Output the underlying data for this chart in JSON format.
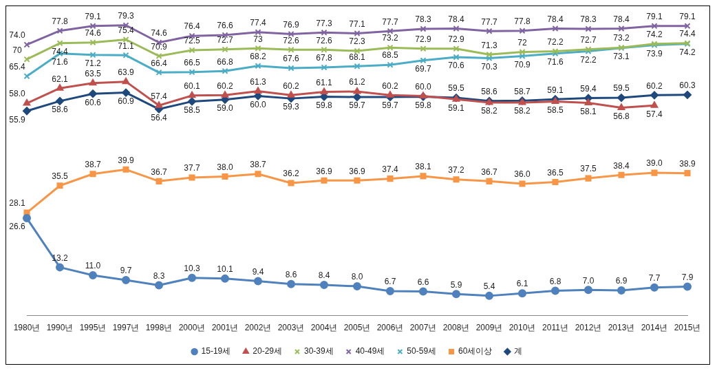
{
  "chart_data": {
    "type": "line",
    "categories": [
      "1980년",
      "1990년",
      "1995년",
      "1997년",
      "1998년",
      "2000년",
      "2001년",
      "2002년",
      "2003년",
      "2004년",
      "2005년",
      "2006년",
      "2007년",
      "2008년",
      "2009년",
      "2010년",
      "2011년",
      "2012년",
      "2013년",
      "2014년",
      "2015년"
    ],
    "series": [
      {
        "name": "15-19세",
        "color": "#4f81bd",
        "marker": "circle",
        "values": [
          26.6,
          13.2,
          11.0,
          9.7,
          8.3,
          10.3,
          10.1,
          9.4,
          8.6,
          8.4,
          8.0,
          6.7,
          6.6,
          5.9,
          5.4,
          6.1,
          6.8,
          7.0,
          6.9,
          7.7,
          7.9
        ],
        "value_labels": [
          "26.6",
          "13.2",
          "11.0",
          "9.7",
          "8.3",
          "10.3",
          "10.1",
          "9.4",
          "8.6",
          "8.4",
          "8.0",
          "6.7",
          "6.6",
          "5.9",
          "5.4",
          "6.1",
          "6.8",
          "7.0",
          "6.9",
          "7.7",
          "7.9"
        ]
      },
      {
        "name": "20-29세",
        "color": "#c0504d",
        "marker": "triangle",
        "values": [
          58.0,
          62.1,
          63.5,
          63.9,
          57.4,
          60.1,
          60.2,
          61.3,
          60.2,
          61.1,
          61.2,
          60.2,
          60.0,
          59.1,
          58.2,
          58.2,
          58.5,
          58.1,
          56.8,
          57.4,
          null
        ],
        "value_labels": [
          "58.0",
          "62.1",
          "63.5",
          "63.9",
          "57.4",
          "60.1",
          "60.2",
          "61.3",
          "60.2",
          "61.1",
          "61.2",
          "60.2",
          "60.0",
          "59.1",
          "58.2",
          "58.2",
          "58.5",
          "58.1",
          "56.8",
          "57.4",
          null
        ]
      },
      {
        "name": "30-39세",
        "color": "#9bbb59",
        "marker": "cross",
        "values": [
          70,
          74.4,
          74.6,
          75.4,
          70.9,
          72.5,
          72.7,
          73,
          72.6,
          72.6,
          72.3,
          73.2,
          72.9,
          72.9,
          71.3,
          72,
          72.2,
          72.7,
          73.2,
          74.2,
          74.4
        ],
        "value_labels": [
          "70",
          "74.4",
          "74.6",
          "75.4",
          "70.9",
          "72.5",
          "72.7",
          "73",
          "72.6",
          "72.6",
          "72.3",
          "73.2",
          "72.9",
          "72.9",
          "71.3",
          "72",
          "72.2",
          "72.7",
          "73.2",
          "74.2",
          "74.4"
        ]
      },
      {
        "name": "40-49세",
        "color": "#8064a2",
        "marker": "cross",
        "values": [
          74.0,
          77.8,
          79.1,
          79.3,
          74.6,
          76.4,
          76.6,
          77.4,
          76.9,
          77.3,
          77.1,
          77.7,
          78.3,
          78.4,
          77.7,
          77.8,
          78.4,
          78.3,
          78.4,
          79.1,
          79.1
        ],
        "value_labels": [
          "74.0",
          "77.8",
          "79.1",
          "79.3",
          "74.6",
          "76.4",
          "76.6",
          "77.4",
          "76.9",
          "77.3",
          "77.1",
          "77.7",
          "78.3",
          "78.4",
          "77.7",
          "77.8",
          "78.4",
          "78.3",
          "78.4",
          "79.1",
          "79.1"
        ]
      },
      {
        "name": "50-59세",
        "color": "#4bacc6",
        "marker": "cross",
        "values": [
          65.4,
          71.6,
          71.2,
          71.1,
          66.4,
          66.5,
          66.8,
          68.2,
          67.6,
          67.8,
          68.1,
          68.5,
          69.7,
          70.6,
          70.3,
          70.9,
          71.6,
          72.2,
          73.1,
          73.9,
          74.2
        ],
        "value_labels": [
          "65.4",
          "71.6",
          "71.2",
          "71.1",
          "66.4",
          "66.5",
          "66.8",
          "68.2",
          "67.6",
          "67.8",
          "68.1",
          "68.5",
          "69.7",
          "70.6",
          "70.3",
          "70.9",
          "71.6",
          "72.2",
          "73.1",
          "73.9",
          "74.2"
        ]
      },
      {
        "name": "60세이상",
        "color": "#f79646",
        "marker": "square",
        "values": [
          28.1,
          35.5,
          38.7,
          39.9,
          36.7,
          37.7,
          38.0,
          38.7,
          36.2,
          36.9,
          36.9,
          37.4,
          38.1,
          37.2,
          36.7,
          36.0,
          36.5,
          37.5,
          38.4,
          39.0,
          38.9
        ],
        "value_labels": [
          "28.1",
          "35.5",
          "38.7",
          "39.9",
          "36.7",
          "37.7",
          "38.0",
          "38.7",
          "36.2",
          "36.9",
          "36.9",
          "37.4",
          "38.1",
          "37.2",
          "36.7",
          "36.0",
          "36.5",
          "37.5",
          "38.4",
          "39.0",
          "38.9"
        ]
      },
      {
        "name": "계",
        "color": "#1f497d",
        "marker": "diamond",
        "values": [
          55.9,
          58.6,
          60.6,
          60.9,
          56.4,
          58.5,
          59.0,
          60.0,
          59.3,
          59.8,
          59.7,
          59.7,
          59.8,
          59.5,
          58.6,
          58.7,
          59.1,
          59.4,
          59.5,
          60.2,
          60.3
        ],
        "value_labels": [
          "55.9",
          "58.6",
          "60.6",
          "60.9",
          "56.4",
          "58.5",
          "59.0",
          "60.0",
          "59.3",
          "59.8",
          "59.7",
          "59.7",
          "59.8",
          "59.5",
          "58.6",
          "58.7",
          "59.1",
          "59.4",
          "59.5",
          "60.2",
          "60.3"
        ]
      }
    ],
    "legend": "bottom",
    "line_style": "solid"
  }
}
